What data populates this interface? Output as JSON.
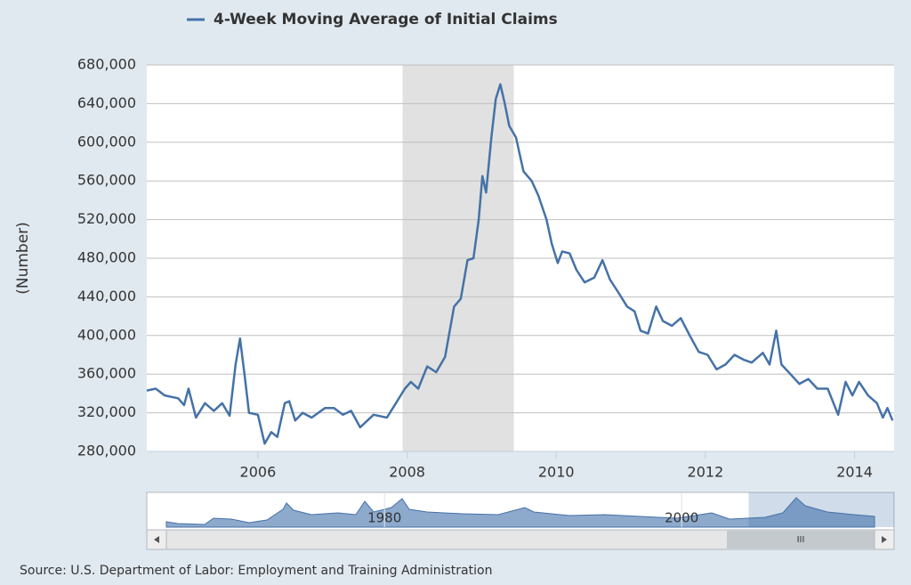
{
  "chart_data": {
    "type": "line",
    "series": [
      {
        "name": "4-Week Moving Average of Initial Claims",
        "color": "#4572a7",
        "values": [
          343000,
          345000,
          338000,
          335000,
          328000,
          345000,
          315000,
          330000,
          322000,
          330000,
          317000,
          370000,
          397000,
          360000,
          320000,
          318000,
          288000,
          300000,
          295000,
          330000,
          332000,
          312000,
          320000,
          315000,
          325000,
          325000,
          318000,
          322000,
          305000,
          318000,
          315000,
          330000,
          345000,
          352000,
          345000,
          368000,
          362000,
          378000,
          430000,
          438000,
          478000,
          480000,
          520000,
          565000,
          548000,
          605000,
          645000,
          660000,
          640000,
          617000,
          605000,
          570000,
          560000,
          545000,
          520000,
          495000,
          475000,
          487000,
          485000,
          468000,
          455000,
          460000,
          478000,
          458000,
          445000,
          430000,
          425000,
          405000,
          402000,
          430000,
          415000,
          410000,
          418000,
          400000,
          383000,
          380000,
          365000,
          370000,
          380000,
          375000,
          372000,
          382000,
          370000,
          405000,
          370000,
          360000,
          350000,
          355000,
          345000,
          345000,
          318000,
          352000,
          338000,
          352000,
          338000,
          330000,
          315000,
          325000,
          312000
        ]
      }
    ],
    "x": [
      2004.51,
      2004.63,
      2004.75,
      2004.93,
      2005.01,
      2005.07,
      2005.17,
      2005.29,
      2005.41,
      2005.52,
      2005.62,
      2005.7,
      2005.76,
      2005.82,
      2005.88,
      2006.0,
      2006.09,
      2006.18,
      2006.26,
      2006.36,
      2006.42,
      2006.5,
      2006.6,
      2006.72,
      2006.9,
      2007.02,
      2007.14,
      2007.25,
      2007.37,
      2007.55,
      2007.73,
      2007.85,
      2007.97,
      2008.05,
      2008.15,
      2008.27,
      2008.39,
      2008.51,
      2008.63,
      2008.72,
      2008.81,
      2008.89,
      2008.96,
      2009.01,
      2009.06,
      2009.13,
      2009.19,
      2009.25,
      2009.31,
      2009.37,
      2009.46,
      2009.56,
      2009.67,
      2009.76,
      2009.87,
      2009.94,
      2010.02,
      2010.08,
      2010.18,
      2010.27,
      2010.38,
      2010.51,
      2010.62,
      2010.72,
      2010.83,
      2010.95,
      2011.05,
      2011.13,
      2011.23,
      2011.34,
      2011.43,
      2011.55,
      2011.67,
      2011.79,
      2011.91,
      2012.03,
      2012.15,
      2012.27,
      2012.39,
      2012.51,
      2012.62,
      2012.77,
      2012.86,
      2012.95,
      2013.02,
      2013.14,
      2013.26,
      2013.38,
      2013.5,
      2013.64,
      2013.78,
      2013.88,
      2013.97,
      2014.06,
      2014.18,
      2014.3,
      2014.38,
      2014.44,
      2014.51
    ],
    "xlim": [
      2004.51,
      2014.53
    ],
    "xticks": [
      2006,
      2008,
      2010,
      2012,
      2014
    ],
    "ylim": [
      280000,
      680000
    ],
    "yticks": [
      {
        "value": 280000,
        "label": "280,000"
      },
      {
        "value": 320000,
        "label": "320,000"
      },
      {
        "value": 360000,
        "label": "360,000"
      },
      {
        "value": 400000,
        "label": "400,000"
      },
      {
        "value": 440000,
        "label": "440,000"
      },
      {
        "value": 480000,
        "label": "480,000"
      },
      {
        "value": 520000,
        "label": "520,000"
      },
      {
        "value": 560000,
        "label": "560,000"
      },
      {
        "value": 600000,
        "label": "600,000"
      },
      {
        "value": 640000,
        "label": "640,000"
      },
      {
        "value": 680000,
        "label": "680,000"
      }
    ],
    "y_label": "(Number)",
    "grid": true,
    "recession": [
      2007.94,
      2009.43
    ],
    "navigator": {
      "xlim": [
        1964,
        2014.3
      ],
      "xticks": [
        1980,
        2000
      ]
    },
    "source": "Source: U.S. Department of Labor: Employment and Training Administration"
  }
}
